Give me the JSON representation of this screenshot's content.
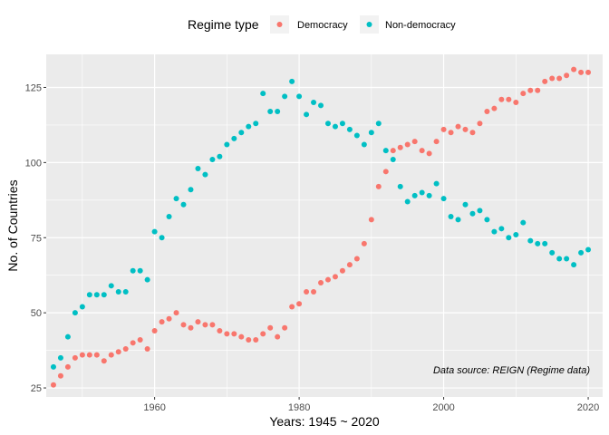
{
  "chart_data": {
    "type": "scatter",
    "title": "",
    "xlabel": "Years: 1945 ~ 2020",
    "ylabel": "No. of Countries",
    "xlim": [
      1945,
      2022
    ],
    "ylim": [
      22,
      136
    ],
    "x_ticks": [
      1960,
      1980,
      2000,
      2020
    ],
    "y_ticks": [
      25,
      50,
      75,
      100,
      125
    ],
    "grid": true,
    "legend": {
      "title": "Regime type",
      "position": "top"
    },
    "annotation": "Data source: REIGN (Regime data)",
    "series": [
      {
        "name": "Democracy",
        "color": "#F8766D",
        "x": [
          1946,
          1947,
          1948,
          1949,
          1950,
          1951,
          1952,
          1953,
          1954,
          1955,
          1956,
          1957,
          1958,
          1959,
          1960,
          1961,
          1962,
          1963,
          1964,
          1965,
          1966,
          1967,
          1968,
          1969,
          1970,
          1971,
          1972,
          1973,
          1974,
          1975,
          1976,
          1977,
          1978,
          1979,
          1980,
          1981,
          1982,
          1983,
          1984,
          1985,
          1986,
          1987,
          1988,
          1989,
          1990,
          1991,
          1992,
          1993,
          1994,
          1995,
          1996,
          1997,
          1998,
          1999,
          2000,
          2001,
          2002,
          2003,
          2004,
          2005,
          2006,
          2007,
          2008,
          2009,
          2010,
          2011,
          2012,
          2013,
          2014,
          2015,
          2016,
          2017,
          2018,
          2019,
          2020
        ],
        "y": [
          26,
          29,
          32,
          35,
          36,
          36,
          36,
          34,
          36,
          37,
          38,
          40,
          41,
          38,
          44,
          47,
          48,
          50,
          46,
          45,
          47,
          46,
          46,
          44,
          43,
          43,
          42,
          41,
          41,
          43,
          45,
          42,
          45,
          52,
          53,
          57,
          57,
          60,
          61,
          62,
          64,
          66,
          68,
          73,
          81,
          92,
          97,
          104,
          105,
          106,
          107,
          104,
          103,
          107,
          111,
          110,
          112,
          111,
          110,
          113,
          117,
          118,
          121,
          121,
          120,
          123,
          124,
          124,
          127,
          128,
          128,
          129,
          131,
          130,
          130
        ]
      },
      {
        "name": "Non-democracy",
        "color": "#00BFC4",
        "x": [
          1946,
          1947,
          1948,
          1949,
          1950,
          1951,
          1952,
          1953,
          1954,
          1955,
          1956,
          1957,
          1958,
          1959,
          1960,
          1961,
          1962,
          1963,
          1964,
          1965,
          1966,
          1967,
          1968,
          1969,
          1970,
          1971,
          1972,
          1973,
          1974,
          1975,
          1976,
          1977,
          1978,
          1979,
          1980,
          1981,
          1982,
          1983,
          1984,
          1985,
          1986,
          1987,
          1988,
          1989,
          1990,
          1991,
          1992,
          1993,
          1994,
          1995,
          1996,
          1997,
          1998,
          1999,
          2000,
          2001,
          2002,
          2003,
          2004,
          2005,
          2006,
          2007,
          2008,
          2009,
          2010,
          2011,
          2012,
          2013,
          2014,
          2015,
          2016,
          2017,
          2018,
          2019,
          2020
        ],
        "y": [
          32,
          35,
          42,
          50,
          52,
          56,
          56,
          56,
          59,
          57,
          57,
          64,
          64,
          61,
          77,
          75,
          82,
          88,
          86,
          91,
          98,
          96,
          101,
          102,
          106,
          108,
          110,
          112,
          113,
          123,
          117,
          117,
          122,
          127,
          122,
          116,
          120,
          119,
          113,
          112,
          113,
          111,
          109,
          106,
          110,
          113,
          104,
          101,
          92,
          87,
          89,
          90,
          89,
          93,
          88,
          82,
          81,
          86,
          83,
          84,
          81,
          77,
          78,
          75,
          76,
          80,
          74,
          73,
          73,
          70,
          68,
          68,
          66,
          70,
          71
        ]
      }
    ]
  }
}
